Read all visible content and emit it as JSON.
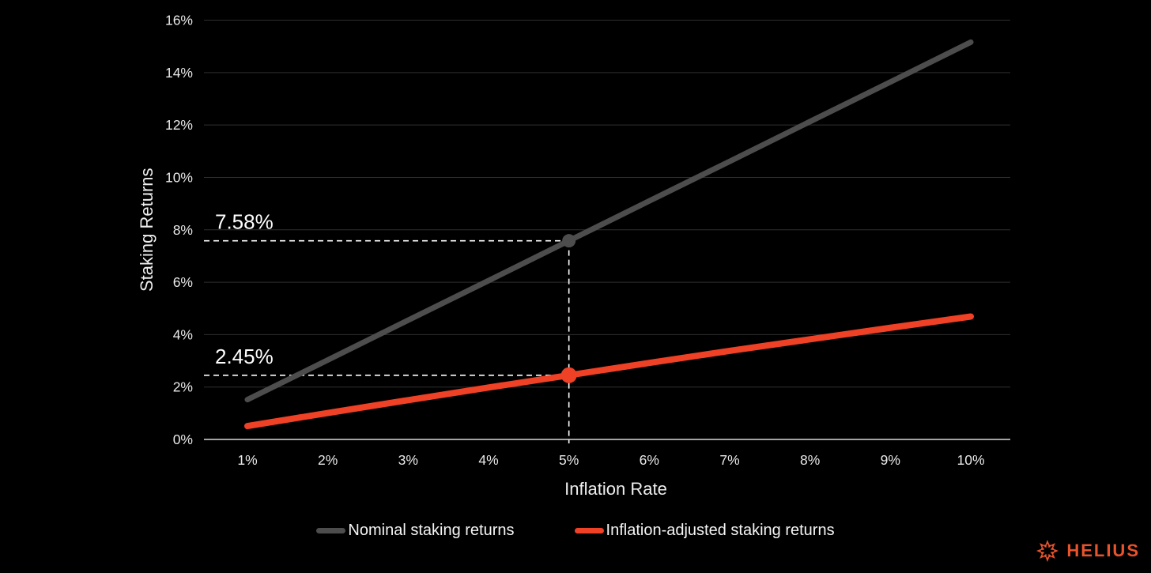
{
  "colors": {
    "background": "#000000",
    "gridline": "#2f2f31",
    "axis_line": "#d9d9d9",
    "tick_text": "#e8e8e8",
    "axis_title_text": "#eeeeee",
    "annotation_text": "#ffffff",
    "annotation_dash": "#ffffff",
    "legend_text": "#f5f5f5",
    "brand": "#E8532C"
  },
  "chart_data": {
    "type": "line",
    "title": "",
    "xlabel": "Inflation Rate",
    "ylabel": "Staking Returns",
    "x": [
      1,
      2,
      3,
      4,
      5,
      6,
      7,
      8,
      9,
      10
    ],
    "x_tick_labels": [
      "1%",
      "2%",
      "3%",
      "4%",
      "5%",
      "6%",
      "7%",
      "8%",
      "9%",
      "10%"
    ],
    "ylim": [
      0,
      16
    ],
    "y_ticks": [
      0,
      2,
      4,
      6,
      8,
      10,
      12,
      14,
      16
    ],
    "y_tick_labels": [
      "0%",
      "2%",
      "4%",
      "6%",
      "8%",
      "10%",
      "12%",
      "14%",
      "16%"
    ],
    "grid": true,
    "legend_position": "bottom",
    "series": [
      {
        "name": "Nominal staking returns",
        "slug": "nominal-staking-returns",
        "color": "#4d4d4d",
        "line_width": 7,
        "values": [
          1.52,
          3.03,
          4.55,
          6.06,
          7.58,
          9.1,
          10.61,
          12.13,
          13.64,
          15.16
        ]
      },
      {
        "name": "Inflation-adjusted staking returns",
        "slug": "inflation-adjusted-staking-returns",
        "color": "#EE4126",
        "line_width": 8,
        "values": [
          0.51,
          1.01,
          1.5,
          1.98,
          2.45,
          2.92,
          3.38,
          3.82,
          4.26,
          4.69
        ]
      }
    ],
    "annotations": [
      {
        "label": "7.58%",
        "x": 5,
        "y": 7.58,
        "dot_color": "#4d4d4d",
        "dot_radius": 8.5
      },
      {
        "label": "2.45%",
        "x": 5,
        "y": 2.45,
        "dot_color": "#EE4126",
        "dot_radius": 10
      }
    ]
  },
  "branding": {
    "logo_text": "HELIUS"
  }
}
